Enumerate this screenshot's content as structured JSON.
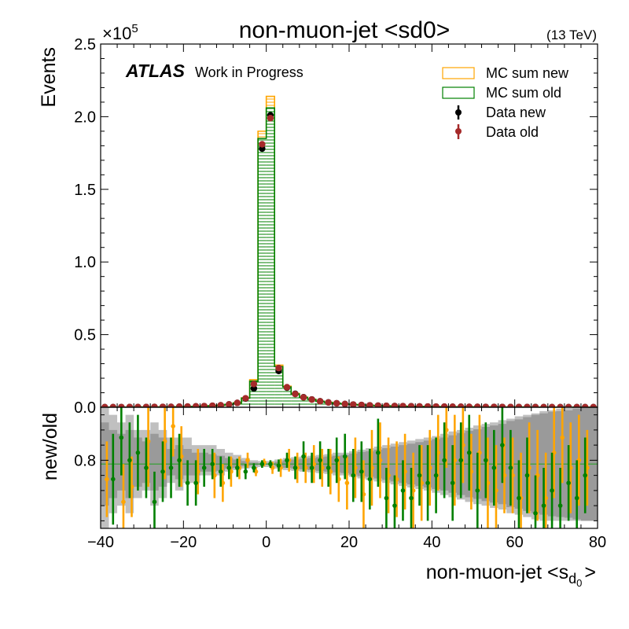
{
  "chart_data": [
    {
      "type": "histogram",
      "title": "non-muon-jet <sd0>",
      "energy_label": "(13 TeV)",
      "experiment": "ATLAS",
      "experiment_status": "Work in Progress",
      "ylabel": "Events",
      "y_multiplier": "×10",
      "y_multiplier_exp": "5",
      "xlim": [
        -40,
        80
      ],
      "ylim": [
        0,
        250000
      ],
      "x_ticks": [
        -40,
        -20,
        0,
        20,
        40,
        60,
        80
      ],
      "y_ticks": [
        0,
        50000,
        100000,
        150000,
        200000,
        250000
      ],
      "y_tick_labels": [
        "0.0",
        "0.5",
        "1.0",
        "1.5",
        "2.0",
        "2.5"
      ],
      "legend_position": "top-right",
      "bin_edges": [
        -40,
        -38,
        -36,
        -34,
        -32,
        -30,
        -28,
        -26,
        -24,
        -22,
        -20,
        -18,
        -16,
        -14,
        -12,
        -10,
        -8,
        -6,
        -4,
        -2,
        0,
        2,
        4,
        6,
        8,
        10,
        12,
        14,
        16,
        18,
        20,
        22,
        24,
        26,
        28,
        30,
        32,
        34,
        36,
        38,
        40,
        42,
        44,
        46,
        48,
        50,
        52,
        54,
        56,
        58,
        60,
        62,
        64,
        66,
        68,
        70,
        72,
        74,
        76,
        78,
        80
      ],
      "series": [
        {
          "name": "MC sum new",
          "style": "hatched-step",
          "color": "#ffa500",
          "values": [
            100,
            110,
            120,
            140,
            160,
            180,
            220,
            260,
            320,
            400,
            500,
            620,
            800,
            1050,
            1400,
            2000,
            3000,
            6500,
            19000,
            190000,
            214000,
            29000,
            14500,
            9500,
            7000,
            5500,
            4200,
            3400,
            2800,
            2300,
            1900,
            1600,
            1350,
            1150,
            1000,
            880,
            770,
            680,
            600,
            530,
            470,
            420,
            380,
            340,
            300,
            270,
            240,
            215,
            195,
            175,
            160,
            145,
            130,
            118,
            106,
            95,
            85,
            77,
            70,
            63
          ]
        },
        {
          "name": "MC sum old",
          "style": "hatched-step",
          "color": "#008000",
          "values": [
            100,
            110,
            120,
            140,
            160,
            180,
            215,
            255,
            315,
            390,
            490,
            610,
            790,
            1030,
            1380,
            1970,
            2950,
            6300,
            18000,
            185000,
            206000,
            28000,
            14000,
            9200,
            6800,
            5350,
            4100,
            3300,
            2720,
            2240,
            1850,
            1560,
            1320,
            1120,
            975,
            860,
            750,
            665,
            585,
            520,
            460,
            410,
            370,
            332,
            295,
            265,
            235,
            210,
            190,
            172,
            157,
            142,
            128,
            115,
            104,
            93,
            83,
            75,
            68,
            61
          ]
        },
        {
          "name": "Data new",
          "style": "errorbar",
          "color": "#000000",
          "values": [
            100,
            110,
            120,
            140,
            160,
            180,
            220,
            260,
            320,
            400,
            500,
            620,
            800,
            1050,
            1400,
            2000,
            3000,
            6000,
            13000,
            178000,
            201000,
            25000,
            13500,
            9300,
            6900,
            5400,
            4150,
            3350,
            2760,
            2280,
            1880,
            1580,
            1340,
            1140,
            990,
            870,
            760,
            675,
            595,
            525,
            465,
            415,
            375,
            336,
            298,
            268,
            238,
            212,
            193,
            174,
            158,
            143,
            129,
            117,
            105,
            94,
            84,
            76,
            69,
            62
          ]
        },
        {
          "name": "Data old",
          "style": "errorbar",
          "color": "#a52a2a",
          "values": [
            100,
            110,
            120,
            140,
            160,
            180,
            220,
            260,
            320,
            400,
            500,
            620,
            800,
            1050,
            1400,
            2000,
            3000,
            6200,
            16000,
            181000,
            199000,
            27000,
            13800,
            9100,
            6800,
            5300,
            4100,
            3300,
            2720,
            2240,
            1850,
            1560,
            1320,
            1120,
            975,
            860,
            750,
            665,
            585,
            520,
            460,
            410,
            370,
            332,
            295,
            265,
            235,
            210,
            190,
            172,
            157,
            142,
            128,
            115,
            104,
            93,
            83,
            75,
            68,
            61
          ]
        }
      ]
    },
    {
      "type": "ratio",
      "ylabel": "new/old",
      "xlabel": "non-muon-jet <s",
      "xlabel_sub": "d",
      "xlabel_subsub": "0",
      "xlabel_close": ">",
      "xlim": [
        -40,
        80
      ],
      "ylim": [
        0.71,
        0.87
      ],
      "y_ticks": [
        0.8
      ],
      "y_tick_labels": [
        "0.8"
      ],
      "reference_line": 0.795,
      "reference_color": "#2ca02c",
      "bin_centers": [
        -39,
        -37,
        -35,
        -33,
        -31,
        -29,
        -27,
        -25,
        -23,
        -21,
        -19,
        -17,
        -15,
        -13,
        -11,
        -9,
        -7,
        -5,
        -3,
        -1,
        1,
        3,
        5,
        7,
        9,
        11,
        13,
        15,
        17,
        19,
        21,
        23,
        25,
        27,
        29,
        31,
        33,
        35,
        37,
        39,
        41,
        43,
        45,
        47,
        49,
        51,
        53,
        55,
        57,
        59,
        61,
        63,
        65,
        67,
        69,
        71,
        73,
        75,
        77,
        79
      ],
      "band_outer_low": [
        0.71,
        0.73,
        0.74,
        0.73,
        0.75,
        0.76,
        0.74,
        0.75,
        0.77,
        0.76,
        0.77,
        0.77,
        0.78,
        0.78,
        0.78,
        0.785,
        0.787,
        0.789,
        0.79,
        0.791,
        0.791,
        0.789,
        0.787,
        0.786,
        0.785,
        0.784,
        0.783,
        0.782,
        0.78,
        0.78,
        0.778,
        0.776,
        0.774,
        0.772,
        0.77,
        0.768,
        0.766,
        0.764,
        0.762,
        0.76,
        0.757,
        0.754,
        0.751,
        0.748,
        0.745,
        0.742,
        0.74,
        0.737,
        0.735,
        0.73,
        0.728,
        0.725,
        0.722,
        0.72,
        0.72,
        0.72,
        0.72,
        0.72,
        0.72,
        0.72
      ],
      "band_outer_high": [
        0.87,
        0.86,
        0.85,
        0.86,
        0.84,
        0.84,
        0.85,
        0.84,
        0.83,
        0.83,
        0.83,
        0.82,
        0.82,
        0.82,
        0.815,
        0.81,
        0.807,
        0.803,
        0.8,
        0.799,
        0.799,
        0.801,
        0.803,
        0.804,
        0.805,
        0.806,
        0.807,
        0.808,
        0.81,
        0.81,
        0.812,
        0.814,
        0.816,
        0.818,
        0.82,
        0.822,
        0.824,
        0.826,
        0.828,
        0.83,
        0.832,
        0.835,
        0.838,
        0.84,
        0.843,
        0.846,
        0.848,
        0.85,
        0.853,
        0.855,
        0.858,
        0.86,
        0.862,
        0.865,
        0.866,
        0.868,
        0.869,
        0.87,
        0.87,
        0.87
      ],
      "band_inner_low": [
        0.74,
        0.75,
        0.76,
        0.75,
        0.765,
        0.77,
        0.76,
        0.765,
        0.78,
        0.775,
        0.78,
        0.78,
        0.785,
        0.785,
        0.786,
        0.789,
        0.79,
        0.792,
        0.793,
        0.794,
        0.794,
        0.792,
        0.79,
        0.789,
        0.788,
        0.787,
        0.786,
        0.785,
        0.784,
        0.783,
        0.781,
        0.779,
        0.778,
        0.776,
        0.774,
        0.772,
        0.77,
        0.768,
        0.766,
        0.764,
        0.762,
        0.76,
        0.757,
        0.754,
        0.751,
        0.749,
        0.746,
        0.744,
        0.742,
        0.738,
        0.736,
        0.733,
        0.73,
        0.728,
        0.726,
        0.725,
        0.724,
        0.722,
        0.72,
        0.72
      ],
      "band_inner_high": [
        0.85,
        0.84,
        0.835,
        0.84,
        0.83,
        0.825,
        0.835,
        0.83,
        0.815,
        0.82,
        0.815,
        0.81,
        0.81,
        0.808,
        0.806,
        0.803,
        0.801,
        0.799,
        0.797,
        0.796,
        0.796,
        0.798,
        0.8,
        0.801,
        0.802,
        0.803,
        0.804,
        0.805,
        0.806,
        0.807,
        0.809,
        0.811,
        0.812,
        0.814,
        0.816,
        0.818,
        0.82,
        0.822,
        0.824,
        0.826,
        0.828,
        0.83,
        0.833,
        0.836,
        0.839,
        0.841,
        0.844,
        0.846,
        0.848,
        0.852,
        0.854,
        0.857,
        0.86,
        0.862,
        0.864,
        0.865,
        0.866,
        0.868,
        0.87,
        0.87
      ],
      "series": [
        {
          "name": "new/old (orange)",
          "color": "#ffa500",
          "x": [
            -38.5,
            -34.5,
            -32.5,
            -28.5,
            -24.5,
            -22.5,
            -20.5,
            -16.5,
            -12.5,
            -10.5,
            -8.5,
            -6.5,
            -4.5,
            -2.5,
            -0.5,
            1.5,
            3.5,
            5.5,
            7.5,
            9.5,
            11.5,
            13.5,
            15.5,
            17.5,
            19.5,
            21.5,
            23.5,
            25.5,
            27.5,
            29.5,
            31.5,
            33.5,
            35.5,
            37.5,
            39.5,
            41.5,
            43.5,
            45.5,
            47.5,
            49.5,
            51.5,
            53.5,
            55.5,
            57.5,
            59.5,
            61.5,
            63.5,
            65.5,
            67.5,
            69.5,
            71.5,
            73.5,
            75.5,
            77.5
          ],
          "y": [
            0.775,
            0.745,
            0.765,
            0.825,
            0.825,
            0.845,
            0.805,
            0.785,
            0.78,
            0.77,
            0.785,
            0.79,
            0.8,
            0.785,
            0.797,
            0.79,
            0.79,
            0.8,
            0.79,
            0.79,
            0.795,
            0.79,
            0.785,
            0.775,
            0.77,
            0.79,
            0.755,
            0.79,
            0.8,
            0.78,
            0.775,
            0.785,
            0.76,
            0.77,
            0.79,
            0.81,
            0.84,
            0.8,
            0.82,
            0.785,
            0.81,
            0.77,
            0.76,
            0.78,
            0.78,
            0.75,
            0.79,
            0.78,
            0.75,
            0.81,
            0.83,
            0.79,
            0.8,
            0.79
          ],
          "err": [
            0.05,
            0.05,
            0.04,
            0.06,
            0.05,
            0.04,
            0.04,
            0.03,
            0.03,
            0.025,
            0.02,
            0.015,
            0.01,
            0.006,
            0.005,
            0.008,
            0.012,
            0.015,
            0.02,
            0.02,
            0.025,
            0.025,
            0.03,
            0.03,
            0.035,
            0.04,
            0.045,
            0.05,
            0.05,
            0.05,
            0.05,
            0.05,
            0.05,
            0.05,
            0.05,
            0.05,
            0.05,
            0.06,
            0.05,
            0.05,
            0.05,
            0.06,
            0.06,
            0.05,
            0.05,
            0.06,
            0.06,
            0.06,
            0.06,
            0.06,
            0.06,
            0.06,
            0.06,
            0.05
          ]
        },
        {
          "name": "new/old (green)",
          "color": "#008000",
          "x": [
            -37,
            -35,
            -33,
            -31,
            -29,
            -27,
            -25,
            -23,
            -21,
            -19,
            -17,
            -15,
            -13,
            -11,
            -9,
            -7,
            -5,
            -3,
            -1,
            1,
            3,
            5,
            7,
            9,
            11,
            13,
            15,
            17,
            19,
            21,
            23,
            25,
            27,
            29,
            31,
            33,
            35,
            37,
            39,
            41,
            43,
            45,
            47,
            49,
            51,
            53,
            55,
            57,
            59,
            61,
            63,
            65,
            67,
            69,
            71,
            73,
            75,
            77
          ],
          "y": [
            0.775,
            0.83,
            0.8,
            0.81,
            0.79,
            0.745,
            0.785,
            0.79,
            0.8,
            0.77,
            0.77,
            0.79,
            0.795,
            0.785,
            0.79,
            0.79,
            0.785,
            0.79,
            0.795,
            0.795,
            0.793,
            0.8,
            0.79,
            0.805,
            0.79,
            0.8,
            0.79,
            0.8,
            0.805,
            0.78,
            0.785,
            0.775,
            0.81,
            0.75,
            0.74,
            0.76,
            0.75,
            0.78,
            0.77,
            0.78,
            0.8,
            0.77,
            0.8,
            0.81,
            0.76,
            0.8,
            0.79,
            0.82,
            0.79,
            0.75,
            0.78,
            0.73,
            0.74,
            0.76,
            0.74,
            0.77,
            0.75,
            0.78
          ],
          "err": [
            0.06,
            0.05,
            0.05,
            0.05,
            0.04,
            0.04,
            0.04,
            0.04,
            0.035,
            0.03,
            0.03,
            0.025,
            0.02,
            0.02,
            0.015,
            0.012,
            0.01,
            0.006,
            0.005,
            0.005,
            0.008,
            0.01,
            0.015,
            0.02,
            0.02,
            0.025,
            0.025,
            0.03,
            0.03,
            0.035,
            0.04,
            0.04,
            0.045,
            0.04,
            0.04,
            0.04,
            0.04,
            0.04,
            0.05,
            0.05,
            0.05,
            0.05,
            0.05,
            0.05,
            0.05,
            0.05,
            0.05,
            0.05,
            0.05,
            0.05,
            0.05,
            0.05,
            0.05,
            0.05,
            0.05,
            0.05,
            0.05,
            0.05
          ]
        }
      ]
    }
  ]
}
